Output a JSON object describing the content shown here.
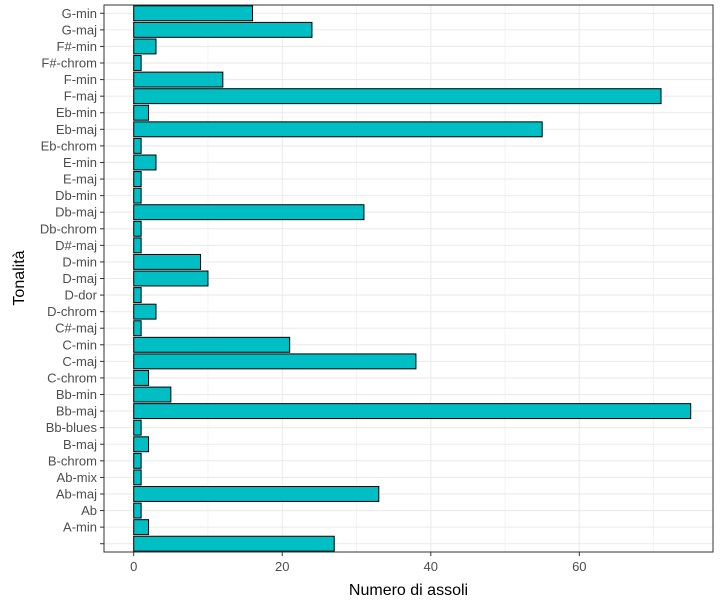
{
  "chart_data": {
    "type": "bar",
    "orientation": "horizontal",
    "xlabel": "Numero di assoli",
    "ylabel": "Tonalità",
    "xlim": [
      -4,
      78
    ],
    "x_ticks": [
      0,
      20,
      40,
      60
    ],
    "grid": true,
    "categories": [
      "",
      "A-min",
      "Ab",
      "Ab-maj",
      "Ab-mix",
      "B-chrom",
      "B-maj",
      "Bb-blues",
      "Bb-maj",
      "Bb-min",
      "C-chrom",
      "C-maj",
      "C-min",
      "C#-maj",
      "D-chrom",
      "D-dor",
      "D-maj",
      "D-min",
      "D#-maj",
      "Db-chrom",
      "Db-maj",
      "Db-min",
      "E-maj",
      "E-min",
      "Eb-chrom",
      "Eb-maj",
      "Eb-min",
      "F-maj",
      "F-min",
      "F#-chrom",
      "F#-min",
      "G-maj",
      "G-min"
    ],
    "values": [
      27,
      2,
      1,
      33,
      1,
      1,
      2,
      1,
      75,
      5,
      2,
      38,
      21,
      1,
      3,
      1,
      10,
      9,
      1,
      1,
      31,
      1,
      1,
      3,
      1,
      55,
      2,
      71,
      12,
      1,
      3,
      24,
      16
    ],
    "bar_fill": "#00bfc4",
    "bar_stroke": "#000000",
    "grid_color": "#ebebeb",
    "border_color": "#333333"
  }
}
